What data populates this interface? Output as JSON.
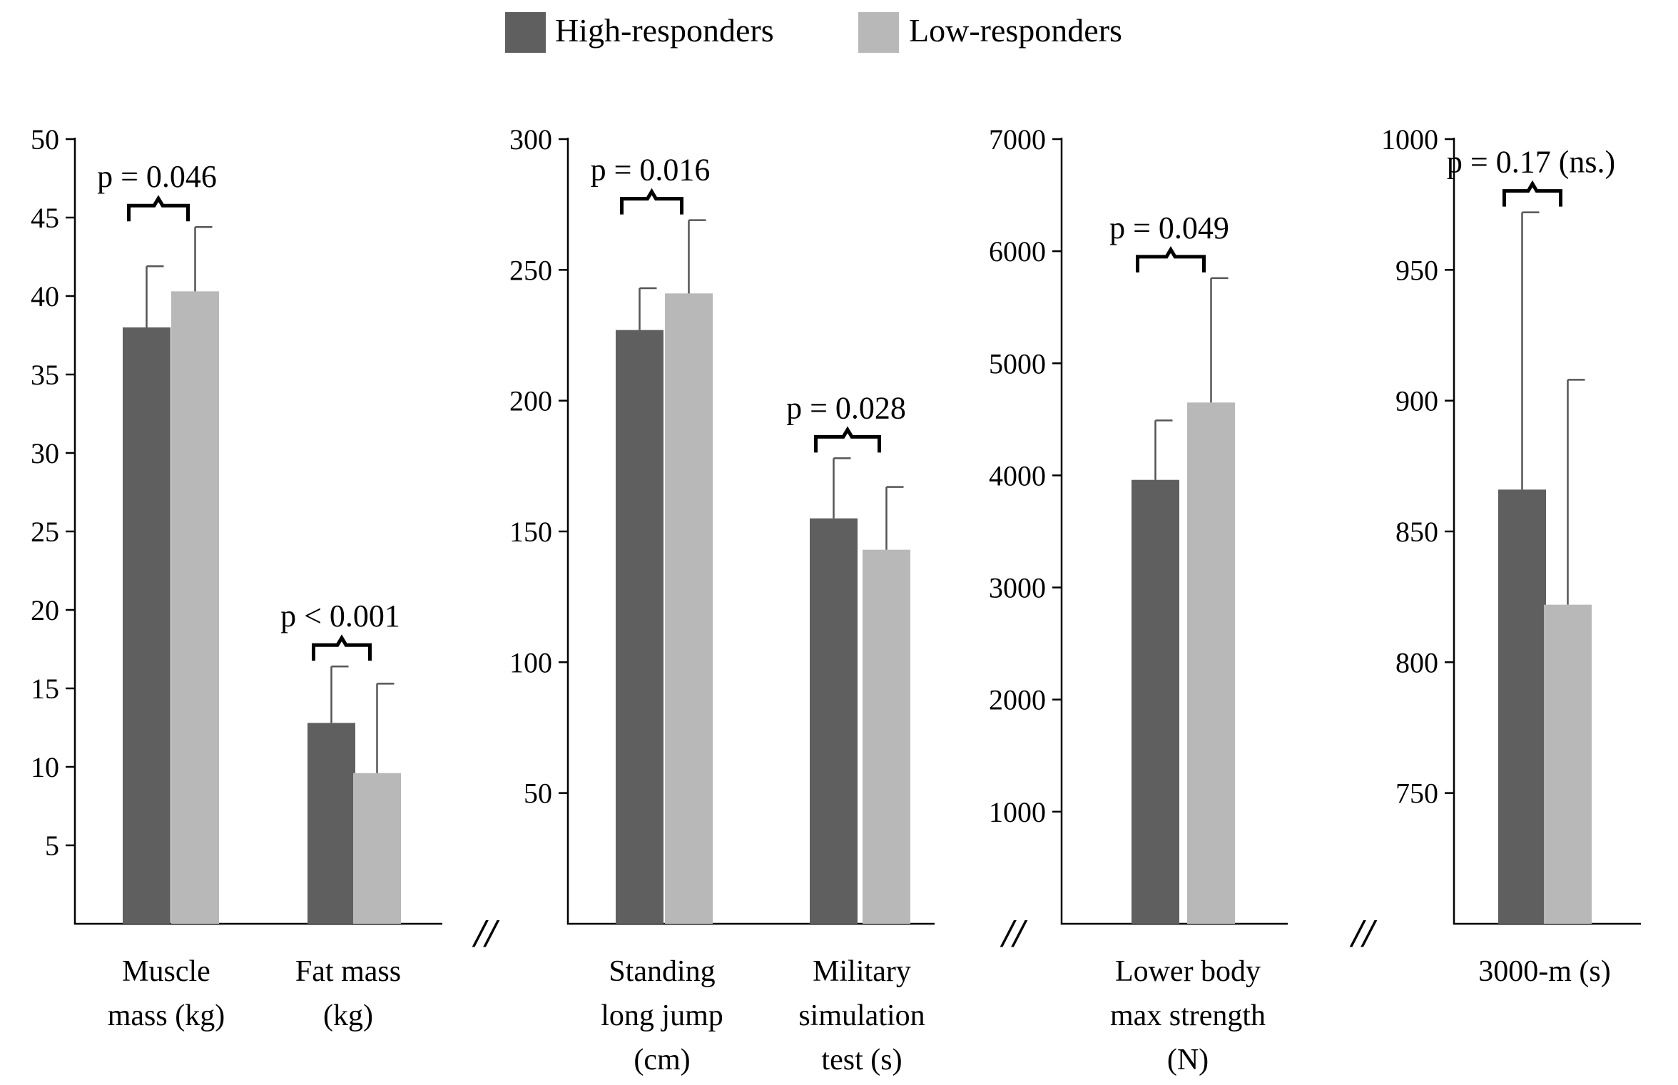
{
  "legend": [
    {
      "label": "High-responders",
      "color": "#5f5f5f"
    },
    {
      "label": "Low-responders",
      "color": "#b8b8b8"
    }
  ],
  "colors": {
    "high": "#5f5f5f",
    "low": "#b8b8b8",
    "error_bar": "#555555"
  },
  "axis_break_marker": "//",
  "chart_data": [
    {
      "type": "bar",
      "ylim": [
        0,
        50
      ],
      "yticks": [
        5,
        10,
        15,
        20,
        25,
        30,
        35,
        40,
        45,
        50
      ],
      "groups": [
        {
          "label_lines": [
            "Muscle",
            "mass (kg)"
          ],
          "high": {
            "mean": 38.0,
            "err": 3.9
          },
          "low": {
            "mean": 40.3,
            "err": 4.1
          },
          "p_text": "p = 0.046"
        },
        {
          "label_lines": [
            "Fat mass",
            "(kg)"
          ],
          "high": {
            "mean": 12.8,
            "err": 3.6
          },
          "low": {
            "mean": 9.6,
            "err": 5.7
          },
          "p_text": "p < 0.001"
        }
      ]
    },
    {
      "type": "bar",
      "ylim": [
        0,
        300
      ],
      "yticks": [
        50,
        100,
        150,
        200,
        250,
        300
      ],
      "groups": [
        {
          "label_lines": [
            "Standing",
            "long jump",
            "(cm)"
          ],
          "high": {
            "mean": 227,
            "err": 16
          },
          "low": {
            "mean": 241,
            "err": 28
          },
          "p_text": "p = 0.016"
        },
        {
          "label_lines": [
            "Military",
            "simulation",
            "test (s)"
          ],
          "high": {
            "mean": 155,
            "err": 23
          },
          "low": {
            "mean": 143,
            "err": 24
          },
          "p_text": "p = 0.028"
        }
      ]
    },
    {
      "type": "bar",
      "ylim": [
        0,
        7000
      ],
      "yticks": [
        1000,
        2000,
        3000,
        4000,
        5000,
        6000,
        7000
      ],
      "groups": [
        {
          "label_lines": [
            "Lower body",
            "max strength",
            "(N)"
          ],
          "high": {
            "mean": 3960,
            "err": 530
          },
          "low": {
            "mean": 4650,
            "err": 1110
          },
          "p_text": "p = 0.049"
        }
      ]
    },
    {
      "type": "bar",
      "ylim": [
        700,
        1000
      ],
      "yticks": [
        750,
        800,
        850,
        900,
        950,
        1000
      ],
      "groups": [
        {
          "label_lines": [
            "3000-m (s)"
          ],
          "high": {
            "mean": 866,
            "err": 106
          },
          "low": {
            "mean": 822,
            "err": 86
          },
          "p_text": "p = 0.17 (ns.)"
        }
      ]
    }
  ]
}
